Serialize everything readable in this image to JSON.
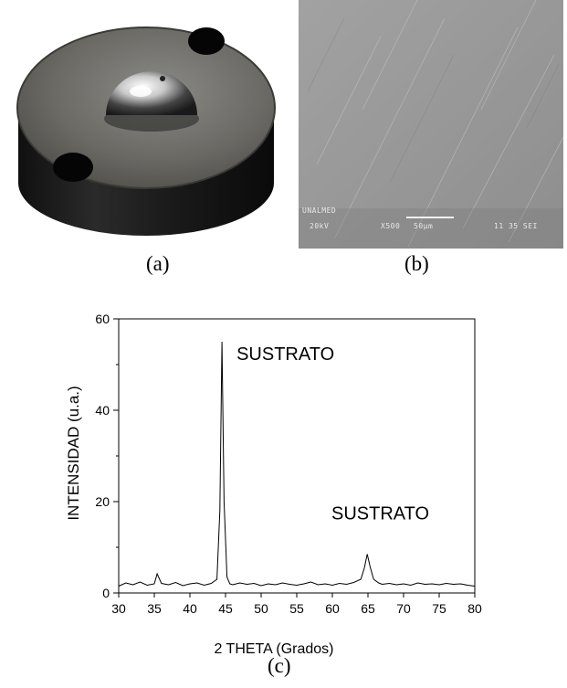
{
  "panels": {
    "a_label": "(a)",
    "b_label": "(b)",
    "c_label": "(c)"
  },
  "sem": {
    "line1": "UNALMED",
    "voltage": "20kV",
    "magnification": "X500",
    "scale": "50μm",
    "info": "11 35 SEI"
  },
  "chart_data": {
    "type": "line",
    "title": "",
    "xlabel": "2 THETA (Grados)",
    "ylabel": "INTENSIDAD (u.a.)",
    "xlim": [
      30,
      80
    ],
    "ylim": [
      0,
      60
    ],
    "xticks": [
      30,
      35,
      40,
      45,
      50,
      55,
      60,
      65,
      70,
      75,
      80
    ],
    "yticks": [
      0,
      20,
      40,
      60
    ],
    "grid": false,
    "series": [
      {
        "x": [
          30,
          31,
          32,
          33,
          34,
          35,
          35.4,
          36,
          37,
          38,
          39,
          40,
          41,
          42,
          43,
          43.8,
          44.2,
          44.5,
          44.8,
          45.2,
          45.6,
          46,
          47,
          48,
          49,
          50,
          51,
          52,
          53,
          54,
          55,
          56,
          57,
          58,
          59,
          60,
          61,
          62,
          63,
          64,
          64.5,
          64.9,
          65.3,
          65.8,
          66.5,
          67,
          68,
          69,
          70,
          71,
          72,
          73,
          74,
          75,
          76,
          77,
          78,
          79,
          80
        ],
        "y": [
          1.5,
          2.2,
          1.8,
          2.4,
          1.7,
          2.0,
          4.2,
          2.1,
          1.8,
          2.3,
          1.6,
          2.0,
          2.2,
          1.7,
          2.1,
          3.0,
          18.0,
          55.0,
          20.0,
          3.5,
          2.0,
          1.8,
          2.2,
          1.9,
          2.1,
          1.6,
          2.0,
          1.8,
          2.2,
          1.9,
          1.7,
          2.0,
          2.4,
          1.8,
          2.0,
          1.7,
          2.1,
          1.9,
          2.3,
          3.0,
          5.5,
          8.5,
          5.8,
          3.0,
          2.2,
          1.9,
          2.1,
          1.8,
          2.0,
          1.7,
          2.2,
          1.9,
          2.0,
          1.8,
          2.1,
          1.9,
          2.0,
          1.7,
          1.5
        ]
      }
    ],
    "annotations": [
      {
        "text": "SUSTRATO",
        "x": 44.5,
        "y": 55
      },
      {
        "text": "SUSTRATO",
        "x": 65,
        "y": 8.5
      }
    ]
  }
}
